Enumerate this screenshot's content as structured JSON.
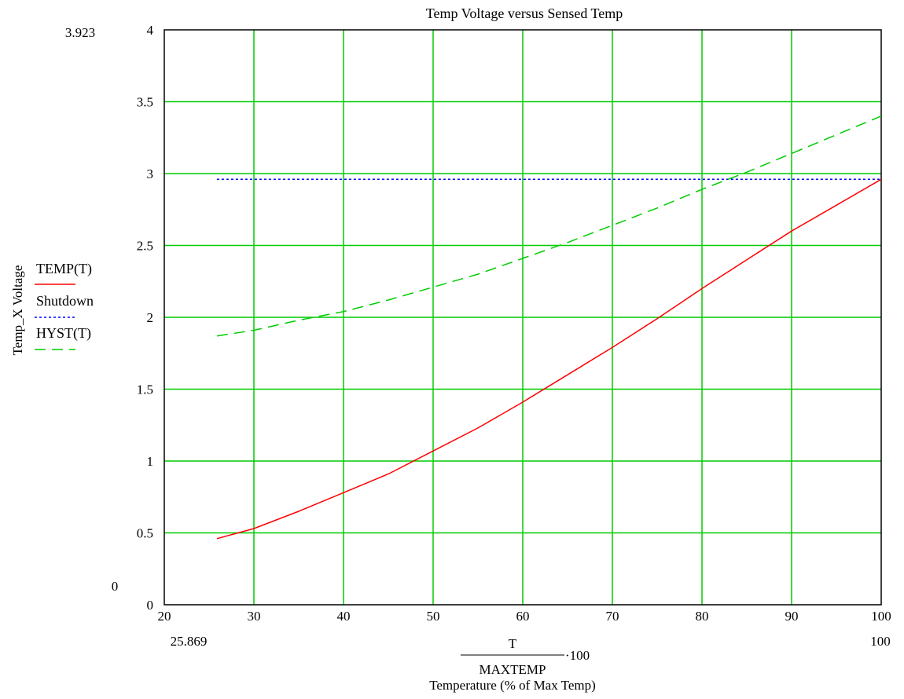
{
  "chart_data": {
    "type": "line",
    "title": "Temp Voltage versus Sensed Temp",
    "ylabel": "Temp_X Voltage",
    "xlabel_numerator": "T",
    "xlabel_denominator": "MAXTEMP",
    "xlabel_multiplier": "·100",
    "xlabel_caption": "Temperature (% of Max Temp)",
    "xlim": [
      20,
      100
    ],
    "ylim": [
      0,
      4
    ],
    "x_ticks": [
      "20",
      "30",
      "40",
      "50",
      "60",
      "70",
      "80",
      "90",
      "100"
    ],
    "y_ticks": [
      "0",
      "0.5",
      "1",
      "1.5",
      "2",
      "2.5",
      "3",
      "3.5",
      "4"
    ],
    "y_range_top_label": "3.923",
    "y_range_bottom_label": "0",
    "x_range_left_label": "25.869",
    "x_range_right_label": "100",
    "grid": true,
    "grid_color": "#00cc00",
    "legend_position": "left",
    "series": [
      {
        "name": "TEMP(T)",
        "color": "#ff0000",
        "style": "solid",
        "x": [
          25.869,
          30,
          35,
          40,
          45,
          50,
          55,
          60,
          65,
          70,
          75,
          80,
          85,
          90,
          95,
          100
        ],
        "values": [
          0.46,
          0.53,
          0.65,
          0.78,
          0.91,
          1.07,
          1.23,
          1.41,
          1.6,
          1.79,
          1.99,
          2.2,
          2.4,
          2.6,
          2.78,
          2.96
        ]
      },
      {
        "name": "Shutdown",
        "color": "#0000ff",
        "style": "dotted",
        "x": [
          25.869,
          100
        ],
        "values": [
          2.96,
          2.96
        ]
      },
      {
        "name": "HYST(T)",
        "color": "#00cc00",
        "style": "dashed",
        "x": [
          25.869,
          30,
          35,
          40,
          45,
          50,
          55,
          60,
          65,
          70,
          75,
          80,
          85,
          90,
          95,
          100
        ],
        "values": [
          1.87,
          1.91,
          1.98,
          2.04,
          2.12,
          2.21,
          2.3,
          2.41,
          2.52,
          2.64,
          2.76,
          2.89,
          3.01,
          3.14,
          3.27,
          3.4
        ]
      }
    ]
  }
}
